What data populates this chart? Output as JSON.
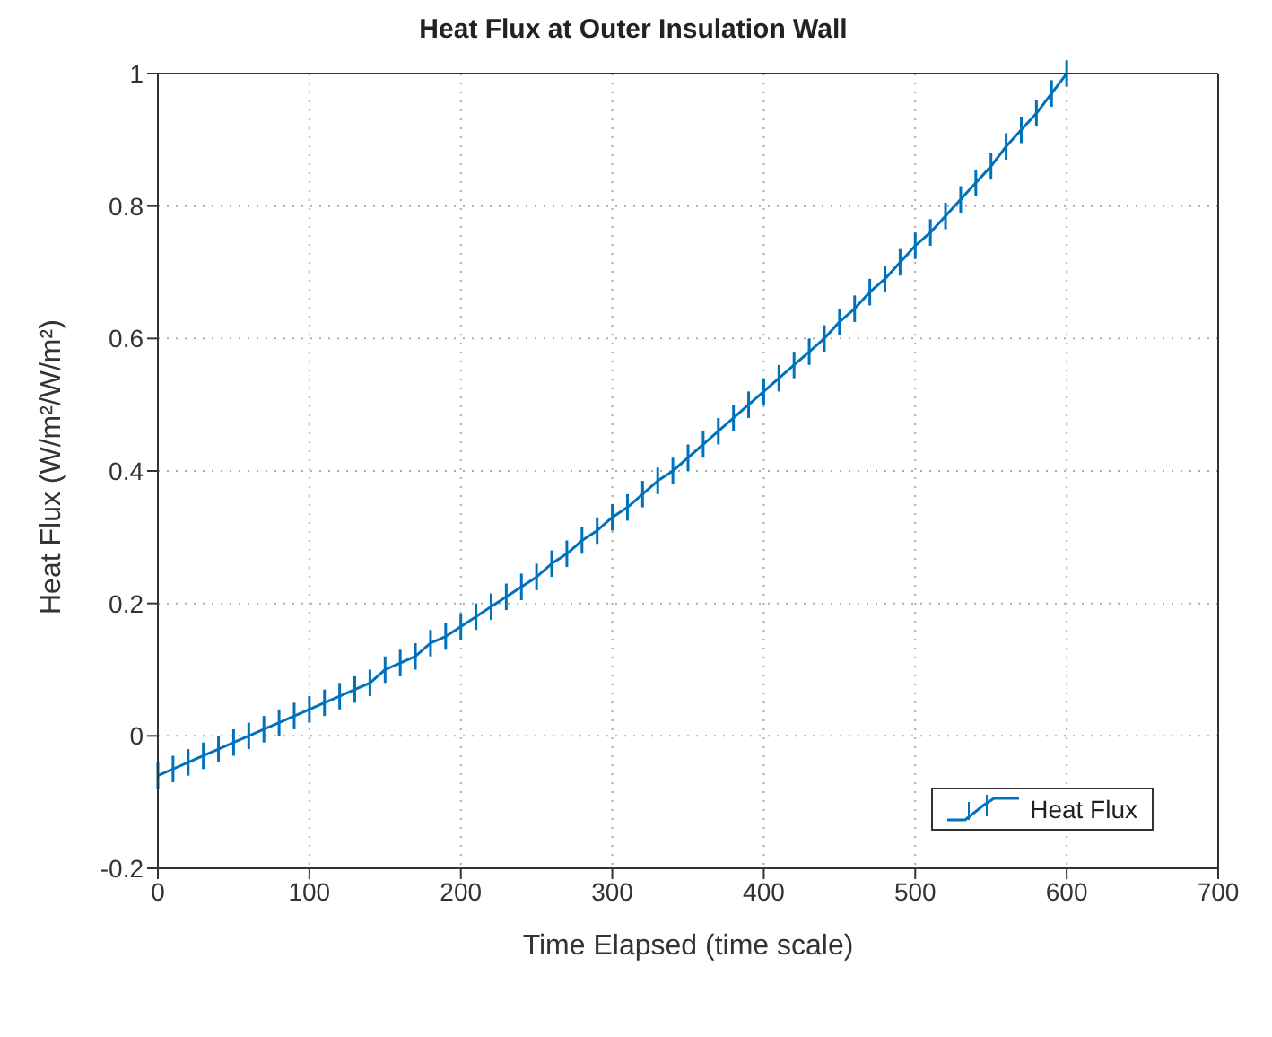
{
  "chart_data": {
    "type": "line",
    "title": "Heat Flux at Outer Insulation Wall",
    "xlabel": "Time Elapsed (time scale)",
    "ylabel": "Heat Flux (W/m²/W/m²)",
    "x": [
      0,
      10,
      20,
      30,
      40,
      50,
      60,
      70,
      80,
      90,
      100,
      110,
      120,
      130,
      140,
      150,
      160,
      170,
      180,
      190,
      200,
      210,
      220,
      230,
      240,
      250,
      260,
      270,
      280,
      290,
      300,
      310,
      320,
      330,
      340,
      350,
      360,
      370,
      380,
      390,
      400,
      410,
      420,
      430,
      440,
      450,
      460,
      470,
      480,
      490,
      500,
      510,
      520,
      530,
      540,
      550,
      560,
      570,
      580,
      590,
      600
    ],
    "series": [
      {
        "name": "Heat Flux",
        "color": "#0072bd",
        "values": [
          -0.06,
          -0.05,
          -0.04,
          -0.03,
          -0.02,
          -0.01,
          0.0,
          0.01,
          0.02,
          0.03,
          0.04,
          0.05,
          0.06,
          0.07,
          0.08,
          0.1,
          0.11,
          0.12,
          0.14,
          0.15,
          0.165,
          0.18,
          0.195,
          0.21,
          0.225,
          0.24,
          0.26,
          0.275,
          0.295,
          0.31,
          0.33,
          0.345,
          0.365,
          0.385,
          0.4,
          0.42,
          0.44,
          0.46,
          0.48,
          0.5,
          0.52,
          0.54,
          0.56,
          0.58,
          0.6,
          0.625,
          0.645,
          0.67,
          0.69,
          0.715,
          0.74,
          0.76,
          0.785,
          0.81,
          0.835,
          0.86,
          0.89,
          0.915,
          0.94,
          0.97,
          1.0
        ],
        "errors": [
          0.02,
          0.02,
          0.02,
          0.02,
          0.02,
          0.02,
          0.02,
          0.02,
          0.02,
          0.02,
          0.02,
          0.02,
          0.02,
          0.02,
          0.02,
          0.02,
          0.02,
          0.02,
          0.02,
          0.02,
          0.02,
          0.02,
          0.02,
          0.02,
          0.02,
          0.02,
          0.02,
          0.02,
          0.02,
          0.02,
          0.02,
          0.02,
          0.02,
          0.02,
          0.02,
          0.02,
          0.02,
          0.02,
          0.02,
          0.02,
          0.02,
          0.02,
          0.02,
          0.02,
          0.02,
          0.02,
          0.02,
          0.02,
          0.02,
          0.02,
          0.02,
          0.02,
          0.02,
          0.02,
          0.02,
          0.02,
          0.02,
          0.02,
          0.02,
          0.02,
          0.02
        ]
      }
    ],
    "xlim": [
      0,
      700
    ],
    "xticks": [
      0,
      100,
      200,
      300,
      400,
      500,
      600,
      700
    ],
    "ylim": [
      -0.2,
      1
    ],
    "yticks": [
      -0.2,
      0,
      0.2,
      0.4,
      0.6,
      0.8,
      1
    ],
    "grid": true,
    "legend": "bottom right",
    "marker": "none",
    "line_style": "solid"
  }
}
